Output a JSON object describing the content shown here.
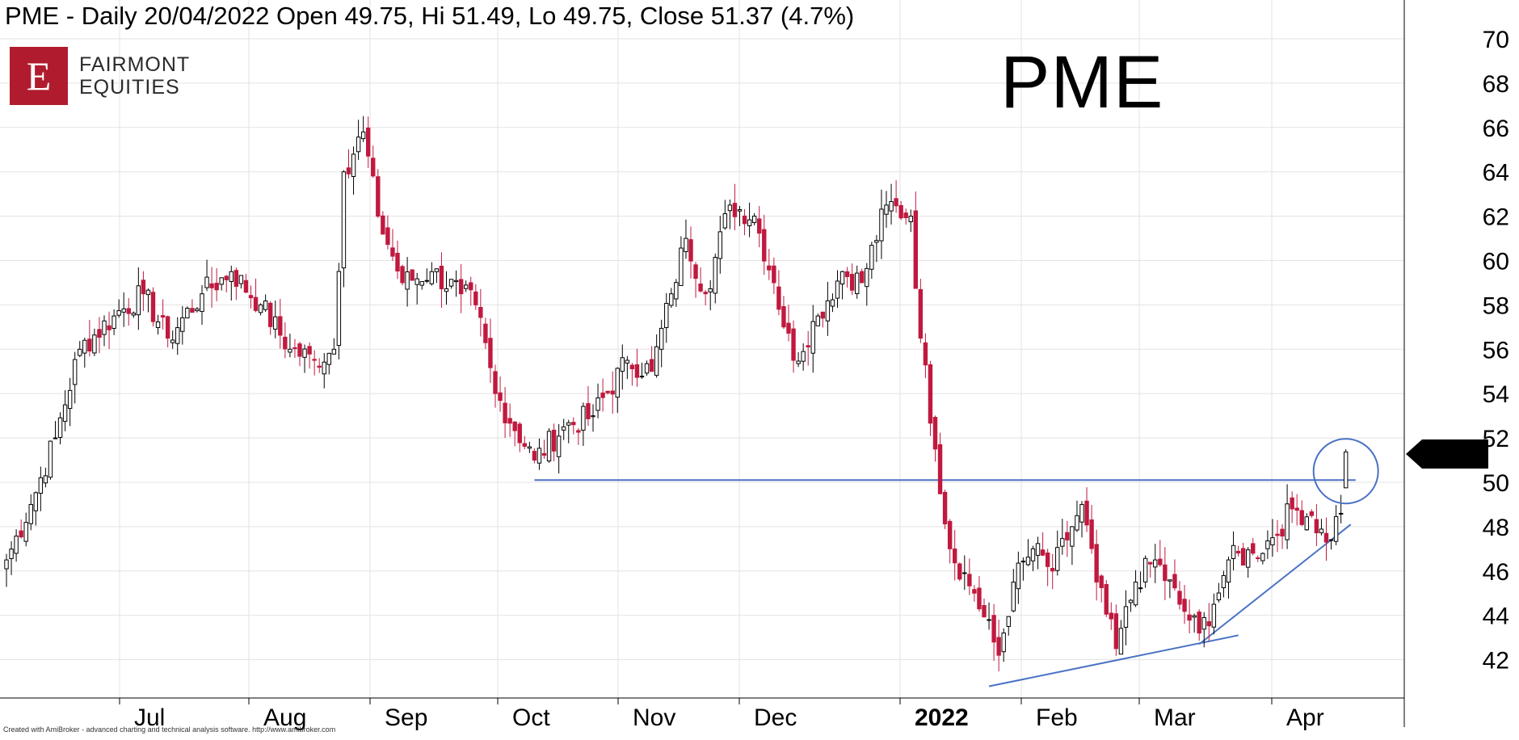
{
  "header": {
    "title": "PME - Daily 20/04/2022 Open 49.75, Hi 51.49, Lo 49.75, Close 51.37 (4.7%)"
  },
  "logo": {
    "mark": "E",
    "line1": "FAIRMONT",
    "line2": "EQUITIES"
  },
  "symbol_label": "PME",
  "footer": {
    "credit": "Created with AmiBroker - advanced charting and technical analysis software. http://www.amibroker.com"
  },
  "colors": {
    "up_candle_fill": "#ffffff",
    "down_candle_fill": "#c0193f",
    "candle_outline": "#000000",
    "trendline": "#4a72c4",
    "gridline": "#e3e3e3",
    "price_tag_bg": "#000000",
    "price_tag_text": "#ffffff"
  },
  "chart_data": {
    "type": "candlestick",
    "y_axis": {
      "ticks": [
        "70",
        "68",
        "66",
        "64",
        "62",
        "60",
        "58",
        "56",
        "54",
        "52",
        "50",
        "48",
        "46",
        "44",
        "42"
      ],
      "range": [
        40.5,
        70.7
      ]
    },
    "x_axis": {
      "ticks": [
        {
          "label": "Jul",
          "bold": false
        },
        {
          "label": "Aug",
          "bold": false
        },
        {
          "label": "Sep",
          "bold": false
        },
        {
          "label": "Oct",
          "bold": false
        },
        {
          "label": "Nov",
          "bold": false
        },
        {
          "label": "Dec",
          "bold": false
        },
        {
          "label": "2022",
          "bold": true
        },
        {
          "label": "Feb",
          "bold": false
        },
        {
          "label": "Mar",
          "bold": false
        },
        {
          "label": "Apr",
          "bold": false
        }
      ]
    },
    "last_price_tag": "51.37",
    "anchors": [
      {
        "i": 0,
        "v": 46.5
      },
      {
        "i": 5,
        "v": 49.0
      },
      {
        "i": 10,
        "v": 52.0
      },
      {
        "i": 15,
        "v": 56.0
      },
      {
        "i": 22,
        "v": 57.5
      },
      {
        "i": 28,
        "v": 58.5
      },
      {
        "i": 33,
        "v": 56.5
      },
      {
        "i": 40,
        "v": 58.5
      },
      {
        "i": 46,
        "v": 59.5
      },
      {
        "i": 52,
        "v": 58.0
      },
      {
        "i": 58,
        "v": 56.0
      },
      {
        "i": 63,
        "v": 55.5
      },
      {
        "i": 67,
        "v": 56.0
      },
      {
        "i": 69,
        "v": 64.0
      },
      {
        "i": 73,
        "v": 65.8
      },
      {
        "i": 76,
        "v": 62.0
      },
      {
        "i": 81,
        "v": 59.0
      },
      {
        "i": 87,
        "v": 59.5
      },
      {
        "i": 93,
        "v": 58.5
      },
      {
        "i": 96,
        "v": 58.0
      },
      {
        "i": 100,
        "v": 54.0
      },
      {
        "i": 108,
        "v": 51.0
      },
      {
        "i": 114,
        "v": 52.5
      },
      {
        "i": 120,
        "v": 53.0
      },
      {
        "i": 127,
        "v": 55.5
      },
      {
        "i": 132,
        "v": 55.0
      },
      {
        "i": 136,
        "v": 58.5
      },
      {
        "i": 139,
        "v": 61.0
      },
      {
        "i": 143,
        "v": 58.5
      },
      {
        "i": 148,
        "v": 62.5
      },
      {
        "i": 153,
        "v": 62.0
      },
      {
        "i": 157,
        "v": 59.0
      },
      {
        "i": 161,
        "v": 55.5
      },
      {
        "i": 166,
        "v": 57.5
      },
      {
        "i": 171,
        "v": 59.5
      },
      {
        "i": 175,
        "v": 59.0
      },
      {
        "i": 180,
        "v": 62.5
      },
      {
        "i": 185,
        "v": 62.0
      },
      {
        "i": 187,
        "v": 56.5
      },
      {
        "i": 190,
        "v": 51.5
      },
      {
        "i": 193,
        "v": 47.0
      },
      {
        "i": 198,
        "v": 45.0
      },
      {
        "i": 203,
        "v": 42.2
      },
      {
        "i": 206,
        "v": 45.5
      },
      {
        "i": 210,
        "v": 47.0
      },
      {
        "i": 214,
        "v": 46.0
      },
      {
        "i": 218,
        "v": 48.0
      },
      {
        "i": 220,
        "v": 49.0
      },
      {
        "i": 223,
        "v": 45.5
      },
      {
        "i": 227,
        "v": 42.5
      },
      {
        "i": 231,
        "v": 45.5
      },
      {
        "i": 235,
        "v": 46.5
      },
      {
        "i": 240,
        "v": 44.5
      },
      {
        "i": 244,
        "v": 43.2
      },
      {
        "i": 247,
        "v": 44.5
      },
      {
        "i": 250,
        "v": 46.5
      },
      {
        "i": 255,
        "v": 46.8
      },
      {
        "i": 259,
        "v": 47.5
      },
      {
        "i": 263,
        "v": 48.8
      },
      {
        "i": 267,
        "v": 48.5
      },
      {
        "i": 270,
        "v": 47.3
      },
      {
        "i": 273,
        "v": 48.6
      },
      {
        "i": 274,
        "v": 51.37
      }
    ],
    "trendlines": [
      {
        "from": {
          "i": 108,
          "v": 50.1
        },
        "to": {
          "i": 276,
          "v": 50.1
        }
      },
      {
        "from": {
          "i": 201,
          "v": 40.8
        },
        "to": {
          "i": 252,
          "v": 43.1
        }
      },
      {
        "from": {
          "i": 244,
          "v": 42.7
        },
        "to": {
          "i": 275,
          "v": 48.1
        }
      }
    ],
    "highlight_circle": {
      "i": 274,
      "v": 50.5
    }
  }
}
